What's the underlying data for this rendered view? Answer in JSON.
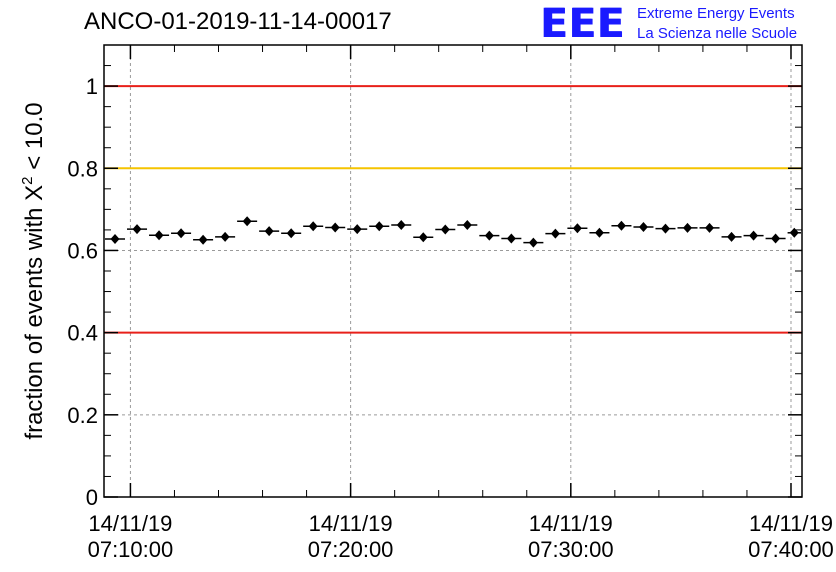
{
  "title": "ANCO-01-2019-11-14-00017",
  "logo": {
    "mark": "EEE",
    "line1": "Extreme Energy Events",
    "line2": "La Scienza nelle Scuole",
    "color": "#1a1aff"
  },
  "chart_data": {
    "type": "scatter",
    "ylabel_prefix": "fraction of events with ",
    "ylabel_symbol": "X",
    "ylabel_sup": "2",
    "ylabel_suffix": " < 10.0",
    "ylim": [
      0,
      1.1
    ],
    "y_ticks": [
      {
        "value": 0,
        "label": "0"
      },
      {
        "value": 0.2,
        "label": "0.2"
      },
      {
        "value": 0.4,
        "label": "0.4"
      },
      {
        "value": 0.6,
        "label": "0.6"
      },
      {
        "value": 0.8,
        "label": "0.8"
      },
      {
        "value": 1,
        "label": "1"
      }
    ],
    "x_range_minutes": [
      8.8,
      40.5
    ],
    "x_ticks": [
      {
        "minute": 10,
        "date": "14/11/19",
        "time": "07:10:00"
      },
      {
        "minute": 20,
        "date": "14/11/19",
        "time": "07:20:00"
      },
      {
        "minute": 30,
        "date": "14/11/19",
        "time": "07:30:00"
      },
      {
        "minute": 40,
        "date": "14/11/19",
        "time": "07:40:00"
      }
    ],
    "grid": true,
    "reference_lines": [
      {
        "value": 1.0,
        "color": "#e8201a"
      },
      {
        "value": 0.8,
        "color": "#f5c400"
      },
      {
        "value": 0.4,
        "color": "#e8201a"
      }
    ],
    "bin_width_minutes": 1,
    "x_start_minutes": 8.8,
    "points": [
      0.628,
      0.652,
      0.637,
      0.642,
      0.626,
      0.633,
      0.671,
      0.647,
      0.642,
      0.659,
      0.656,
      0.652,
      0.659,
      0.662,
      0.632,
      0.651,
      0.662,
      0.636,
      0.629,
      0.619,
      0.641,
      0.654,
      0.643,
      0.66,
      0.657,
      0.653,
      0.655,
      0.655,
      0.633,
      0.636,
      0.629,
      0.643
    ],
    "y_error": 0.008,
    "marker_color": "#000000"
  }
}
